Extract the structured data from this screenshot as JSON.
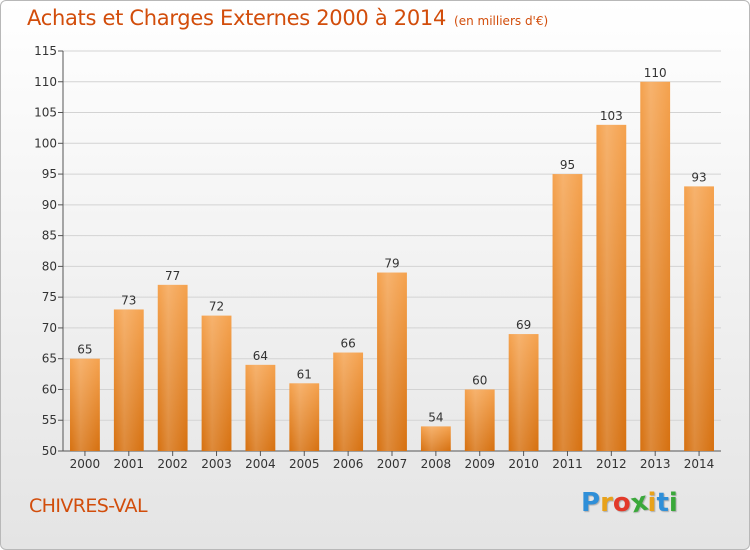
{
  "header": {
    "title": "Achats et Charges Externes 2000 à 2014",
    "subtitle": "(en milliers d'€)"
  },
  "footer": {
    "place": "CHIVRES-VAL",
    "logo_letters": [
      "P",
      "r",
      "o",
      "x",
      "i",
      "t",
      "i"
    ],
    "logo_colors": [
      "#2f8fd8",
      "#e8a21a",
      "#e23a2a",
      "#3aa83a",
      "#e8a21a",
      "#2f8fd8",
      "#3aa83a"
    ]
  },
  "colors": {
    "accent": "#d24d0b",
    "bar_top": "#f5a24e",
    "bar_bottom": "#d6700f",
    "grid": "#d3d3d3"
  },
  "chart_data": {
    "type": "bar",
    "categories": [
      "2000",
      "2001",
      "2002",
      "2003",
      "2004",
      "2005",
      "2006",
      "2007",
      "2008",
      "2009",
      "2010",
      "2011",
      "2012",
      "2013",
      "2014"
    ],
    "values": [
      65,
      73,
      77,
      72,
      64,
      61,
      66,
      79,
      54,
      60,
      69,
      95,
      103,
      110,
      93
    ],
    "title": "Achats et Charges Externes 2000 à 2014",
    "subtitle": "(en milliers d'€)",
    "xlabel": "",
    "ylabel": "",
    "ylim": [
      50,
      115
    ],
    "yticks": [
      50,
      55,
      60,
      65,
      70,
      75,
      80,
      85,
      90,
      95,
      100,
      105,
      110,
      115
    ],
    "grid": true,
    "legend": "none"
  }
}
